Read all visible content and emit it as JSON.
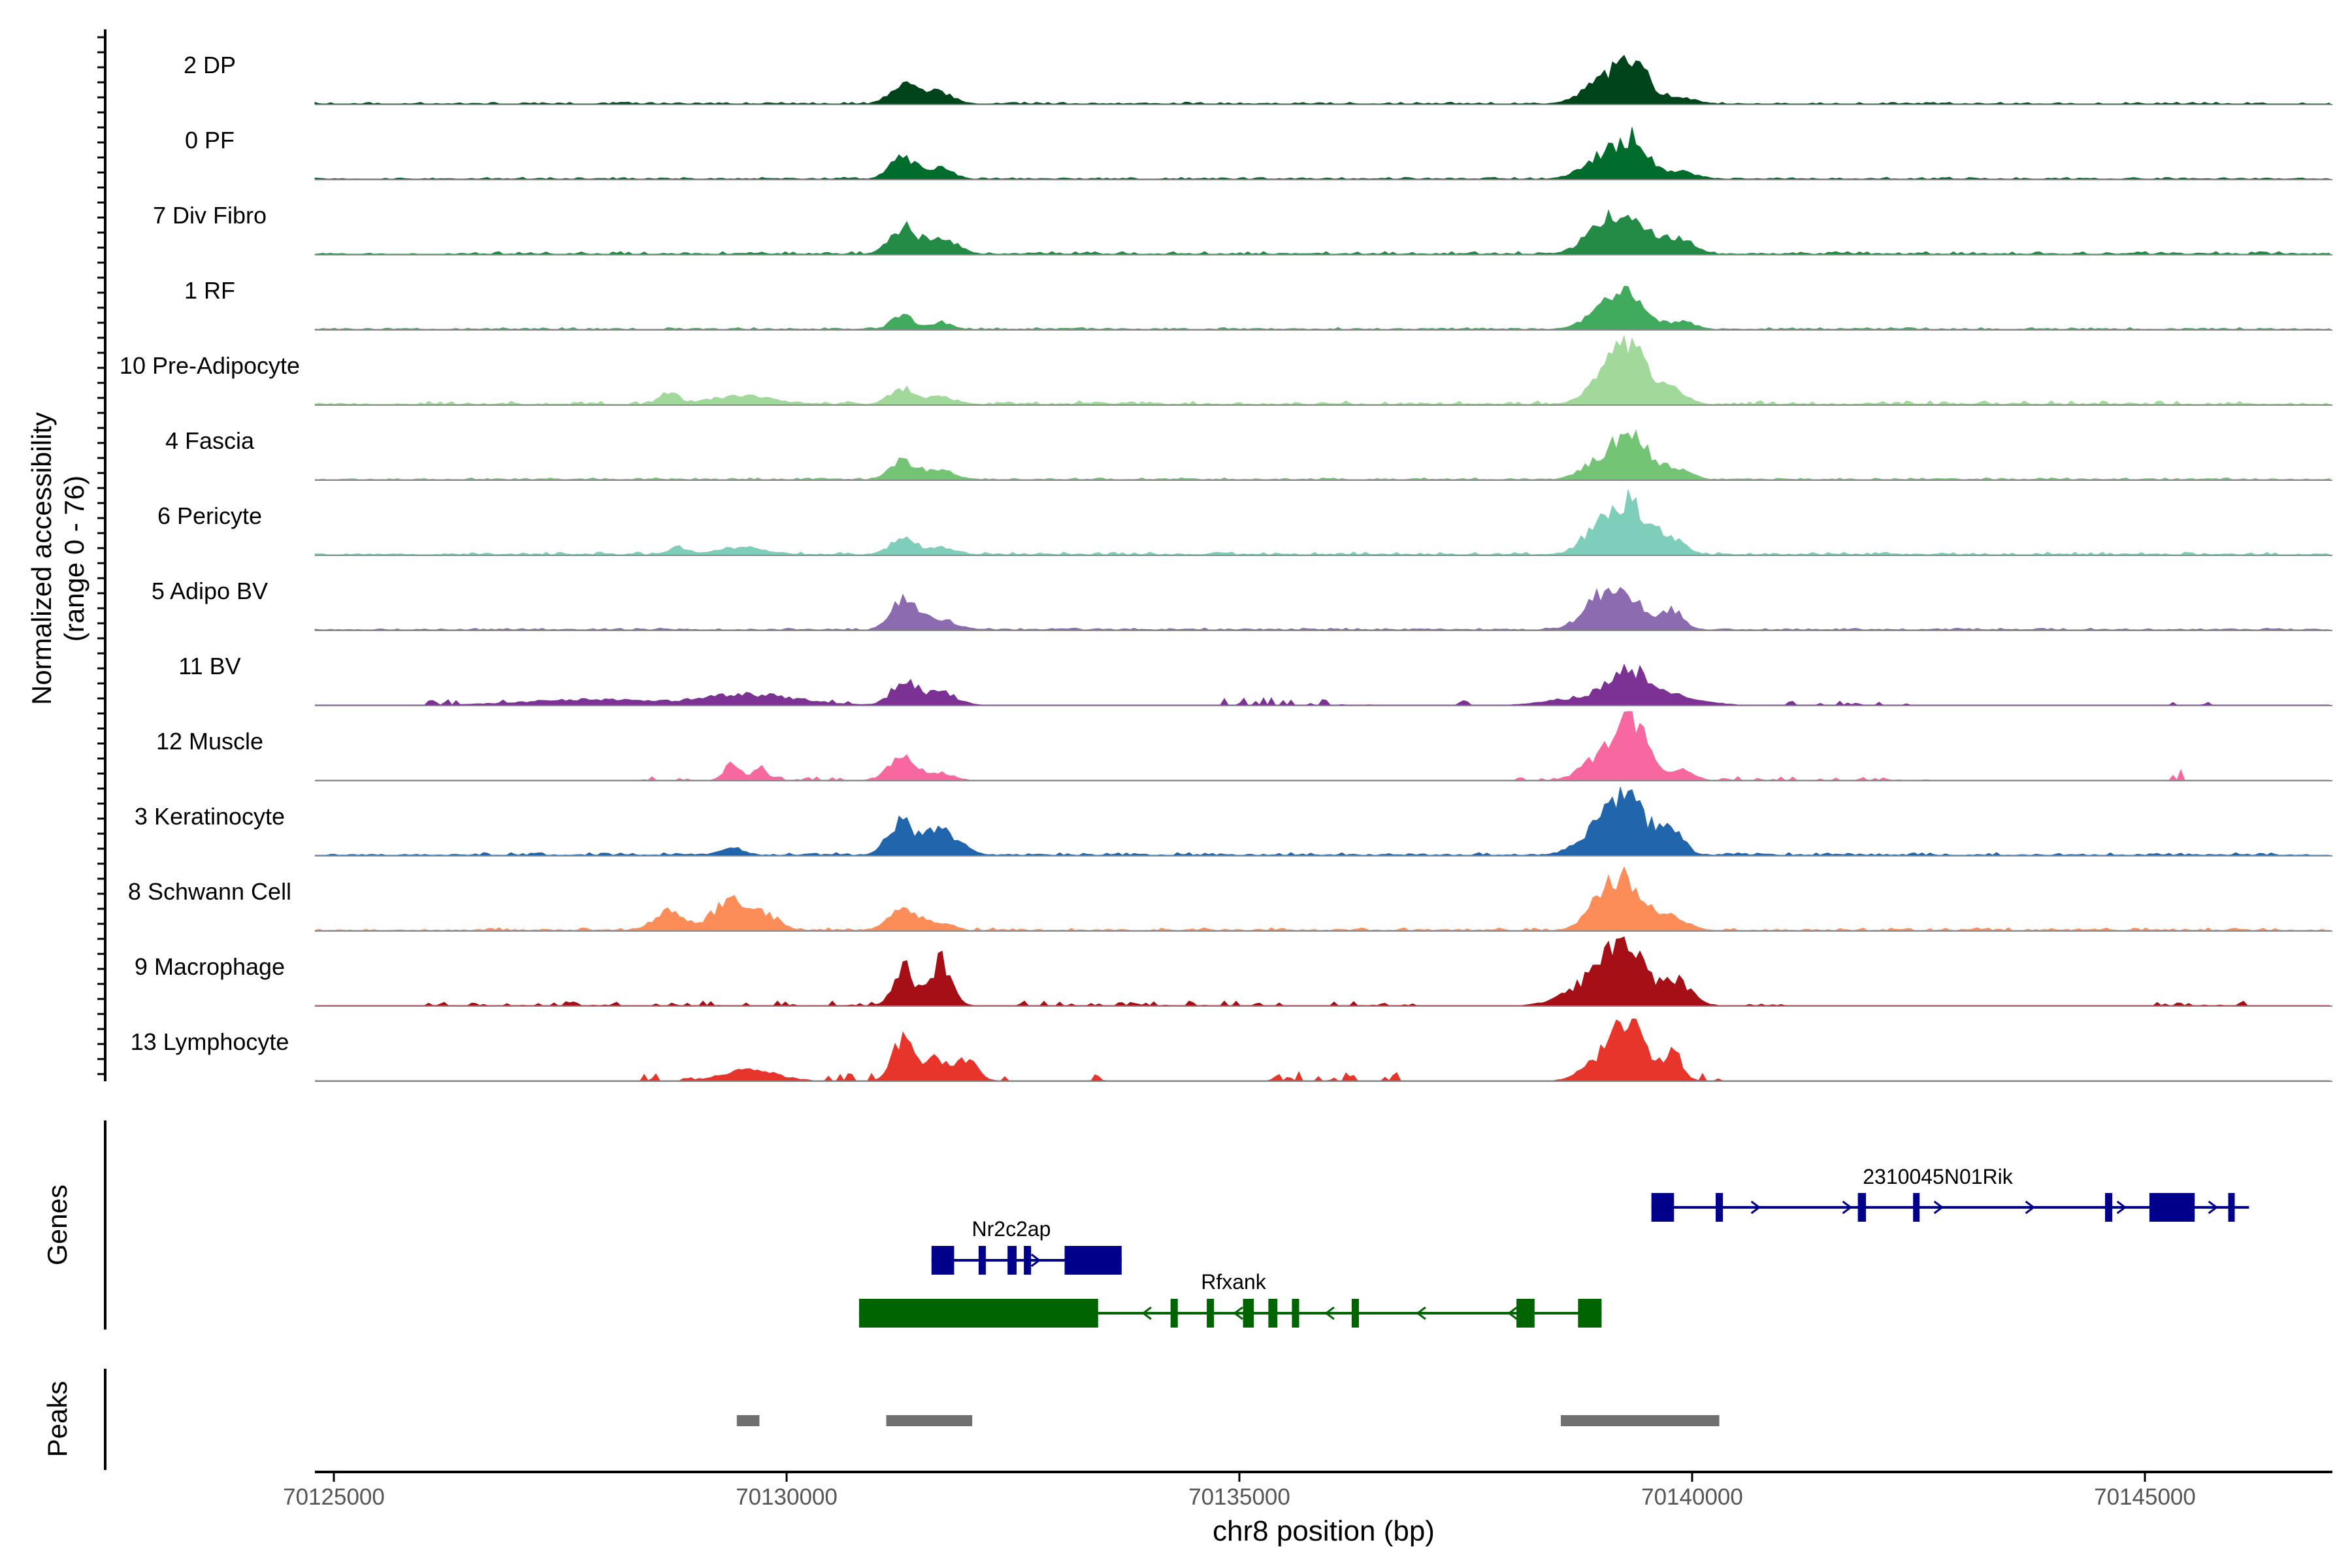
{
  "chart_data": {
    "type": "coverage",
    "title": "",
    "xlabel": "chr8 position (bp)",
    "ylabel": "Normalized accessibility",
    "ylabel_sub": "(range 0 - 76)",
    "xlim": [
      70124800,
      70147200
    ],
    "ylim": [
      0,
      76
    ],
    "x_ticks": [
      70125000,
      70130000,
      70135000,
      70140000,
      70145000
    ],
    "x_tick_labels": [
      "70125000",
      "70130000",
      "70135000",
      "70140000",
      "70145000"
    ],
    "tracks": [
      {
        "name": "2 DP",
        "color": "#00441b",
        "baseline": 3,
        "peaks": [
          [
            70131280,
            250,
            22
          ],
          [
            70131650,
            300,
            14
          ],
          [
            70139250,
            450,
            40
          ],
          [
            70139400,
            150,
            20
          ],
          [
            70138900,
            350,
            8
          ],
          [
            70139900,
            300,
            6
          ]
        ],
        "blips": [
          [
            70128000,
            70135500,
            2
          ],
          [
            70140500,
            70141600,
            2
          ]
        ]
      },
      {
        "name": "0 PF",
        "color": "#006d2c",
        "baseline": 2,
        "peaks": [
          [
            70131280,
            250,
            26
          ],
          [
            70131700,
            250,
            12
          ],
          [
            70139250,
            450,
            36
          ],
          [
            70139400,
            150,
            18
          ],
          [
            70138900,
            350,
            8
          ],
          [
            70139900,
            300,
            7
          ]
        ],
        "blips": [
          [
            70126500,
            70146500,
            2
          ]
        ]
      },
      {
        "name": "7 Div Fibro",
        "color": "#238b45",
        "baseline": 2,
        "peaks": [
          [
            70131280,
            250,
            30
          ],
          [
            70131700,
            300,
            20
          ],
          [
            70139250,
            450,
            42
          ],
          [
            70138900,
            300,
            12
          ],
          [
            70139850,
            300,
            16
          ]
        ],
        "blips": [
          [
            70126500,
            70146500,
            3
          ]
        ]
      },
      {
        "name": "1 RF",
        "color": "#41ab5d",
        "baseline": 2,
        "peaks": [
          [
            70131280,
            200,
            18
          ],
          [
            70131700,
            200,
            8
          ],
          [
            70139250,
            400,
            40
          ],
          [
            70138900,
            300,
            8
          ],
          [
            70139900,
            250,
            8
          ]
        ],
        "blips": [
          [
            70126500,
            70146500,
            2
          ]
        ]
      },
      {
        "name": "10 Pre-Adipocyte",
        "color": "#a1d99b",
        "baseline": 3,
        "peaks": [
          [
            70131280,
            250,
            18
          ],
          [
            70131700,
            300,
            8
          ],
          [
            70139300,
            350,
            70
          ],
          [
            70138950,
            300,
            20
          ],
          [
            70139800,
            250,
            18
          ],
          [
            70128700,
            200,
            12
          ],
          [
            70129500,
            600,
            10
          ]
        ],
        "blips": [
          [
            70126000,
            70146200,
            4
          ]
        ]
      },
      {
        "name": "4 Fascia",
        "color": "#74c476",
        "baseline": 2,
        "peaks": [
          [
            70131280,
            250,
            22
          ],
          [
            70131700,
            300,
            10
          ],
          [
            70139300,
            400,
            48
          ],
          [
            70138900,
            300,
            12
          ],
          [
            70139850,
            250,
            12
          ]
        ],
        "blips": [
          [
            70126500,
            70146500,
            2
          ]
        ]
      },
      {
        "name": "6 Pericyte",
        "color": "#7fcdbb",
        "baseline": 2,
        "peaks": [
          [
            70131280,
            250,
            18
          ],
          [
            70131700,
            300,
            8
          ],
          [
            70139300,
            400,
            60
          ],
          [
            70138900,
            300,
            18
          ],
          [
            70139800,
            250,
            14
          ],
          [
            70128800,
            200,
            8
          ],
          [
            70129500,
            500,
            8
          ]
        ],
        "blips": [
          [
            70126500,
            70146500,
            3
          ]
        ]
      },
      {
        "name": "5 Adipo BV",
        "color": "#8c6bb1",
        "baseline": 2,
        "peaks": [
          [
            70131300,
            250,
            38
          ],
          [
            70131700,
            300,
            12
          ],
          [
            70139200,
            450,
            44
          ],
          [
            70138900,
            300,
            12
          ],
          [
            70139800,
            200,
            20
          ]
        ],
        "blips": [
          [
            70126500,
            70146500,
            2
          ]
        ]
      },
      {
        "name": "11 BV",
        "color": "#7b3294",
        "baseline": 0,
        "peaks": [
          [
            70131300,
            250,
            26
          ],
          [
            70131700,
            300,
            14
          ],
          [
            70139300,
            400,
            32
          ],
          [
            70138800,
            600,
            8
          ],
          [
            70139700,
            600,
            10
          ],
          [
            70129600,
            900,
            12
          ],
          [
            70127800,
            1200,
            6
          ]
        ],
        "blips": [
          [
            70126000,
            70130300,
            6
          ],
          [
            70130500,
            70131000,
            6
          ],
          [
            70134800,
            70136500,
            8
          ],
          [
            70137400,
            70137600,
            5
          ],
          [
            70141000,
            70142400,
            5
          ],
          [
            70145300,
            70145900,
            5
          ]
        ]
      },
      {
        "name": "12 Muscle",
        "color": "#f768a1",
        "baseline": 0,
        "peaks": [
          [
            70131280,
            250,
            28
          ],
          [
            70131700,
            250,
            8
          ],
          [
            70139300,
            350,
            70
          ],
          [
            70138900,
            300,
            16
          ],
          [
            70139900,
            200,
            14
          ],
          [
            70129400,
            150,
            18
          ],
          [
            70129700,
            150,
            14
          ]
        ],
        "blips": [
          [
            70128200,
            70131800,
            4
          ],
          [
            70138000,
            70142600,
            4
          ],
          [
            70145200,
            70145400,
            12
          ]
        ]
      },
      {
        "name": "3 Keratinocyte",
        "color": "#2166ac",
        "baseline": 2,
        "peaks": [
          [
            70131250,
            250,
            36
          ],
          [
            70131700,
            350,
            28
          ],
          [
            70139250,
            400,
            64
          ],
          [
            70138900,
            400,
            14
          ],
          [
            70139750,
            250,
            30
          ],
          [
            70129400,
            250,
            8
          ]
        ],
        "blips": [
          [
            70126500,
            70146500,
            3
          ]
        ]
      },
      {
        "name": "8 Schwann Cell",
        "color": "#fc8d59",
        "baseline": 2,
        "peaks": [
          [
            70131300,
            300,
            24
          ],
          [
            70131700,
            250,
            8
          ],
          [
            70139250,
            400,
            58
          ],
          [
            70138950,
            300,
            14
          ],
          [
            70139800,
            300,
            12
          ],
          [
            70128700,
            300,
            22
          ],
          [
            70129400,
            350,
            36
          ],
          [
            70129800,
            250,
            14
          ]
        ],
        "blips": [
          [
            70126500,
            70146500,
            3
          ]
        ]
      },
      {
        "name": "9 Macrophage",
        "color": "#a50f15",
        "baseline": 0,
        "peaks": [
          [
            70131300,
            200,
            42
          ],
          [
            70131700,
            200,
            50
          ],
          [
            70139250,
            350,
            70
          ],
          [
            70138900,
            500,
            26
          ],
          [
            70139800,
            300,
            30
          ]
        ],
        "blips": [
          [
            70126000,
            70131800,
            5
          ],
          [
            70132500,
            70135500,
            5
          ],
          [
            70136000,
            70137000,
            5
          ],
          [
            70140000,
            70141000,
            4
          ],
          [
            70145000,
            70146200,
            5
          ]
        ]
      },
      {
        "name": "13 Lymphocyte",
        "color": "#e8352b",
        "baseline": 0,
        "peaks": [
          [
            70131280,
            200,
            46
          ],
          [
            70131650,
            250,
            26
          ],
          [
            70132000,
            200,
            22
          ],
          [
            70139300,
            350,
            72
          ],
          [
            70138900,
            300,
            14
          ],
          [
            70139800,
            150,
            30
          ],
          [
            70129600,
            500,
            12
          ]
        ],
        "blips": [
          [
            70128300,
            70132500,
            8
          ],
          [
            70133400,
            70133500,
            8
          ],
          [
            70135300,
            70136800,
            10
          ],
          [
            70140000,
            70140300,
            8
          ]
        ]
      }
    ],
    "genes": [
      {
        "name": "2310045N01Rik",
        "color": "#00008b",
        "strand": "+",
        "start": 70139550,
        "end": 70146150,
        "exons": [
          [
            70139550,
            70139800
          ],
          [
            70140260,
            70140340
          ],
          [
            70141830,
            70141920
          ],
          [
            70142440,
            70142500
          ],
          [
            70144560,
            70144640
          ],
          [
            70145050,
            70145550
          ],
          [
            70145920,
            70145980
          ]
        ]
      },
      {
        "name": "Nr2c2ap",
        "color": "#00008b",
        "strand": "+",
        "start": 70131600,
        "end": 70133700,
        "exons": [
          [
            70131600,
            70131850
          ],
          [
            70132120,
            70132200
          ],
          [
            70132440,
            70132540
          ],
          [
            70132620,
            70132700
          ],
          [
            70133070,
            70133700
          ]
        ]
      },
      {
        "name": "Rfxank",
        "color": "#006400",
        "strand": "-",
        "start": 70130800,
        "end": 70139000,
        "exons": [
          [
            70130800,
            70133440
          ],
          [
            70134240,
            70134320
          ],
          [
            70134640,
            70134720
          ],
          [
            70135040,
            70135160
          ],
          [
            70135320,
            70135420
          ],
          [
            70135580,
            70135660
          ],
          [
            70136240,
            70136320
          ],
          [
            70138060,
            70138260
          ],
          [
            70138740,
            70139000
          ]
        ]
      }
    ],
    "peaks": [
      [
        70129450,
        70129700
      ],
      [
        70131100,
        70132050
      ],
      [
        70138550,
        70140300
      ]
    ],
    "panel_labels": {
      "genes": "Genes",
      "peaks": "Peaks"
    }
  }
}
